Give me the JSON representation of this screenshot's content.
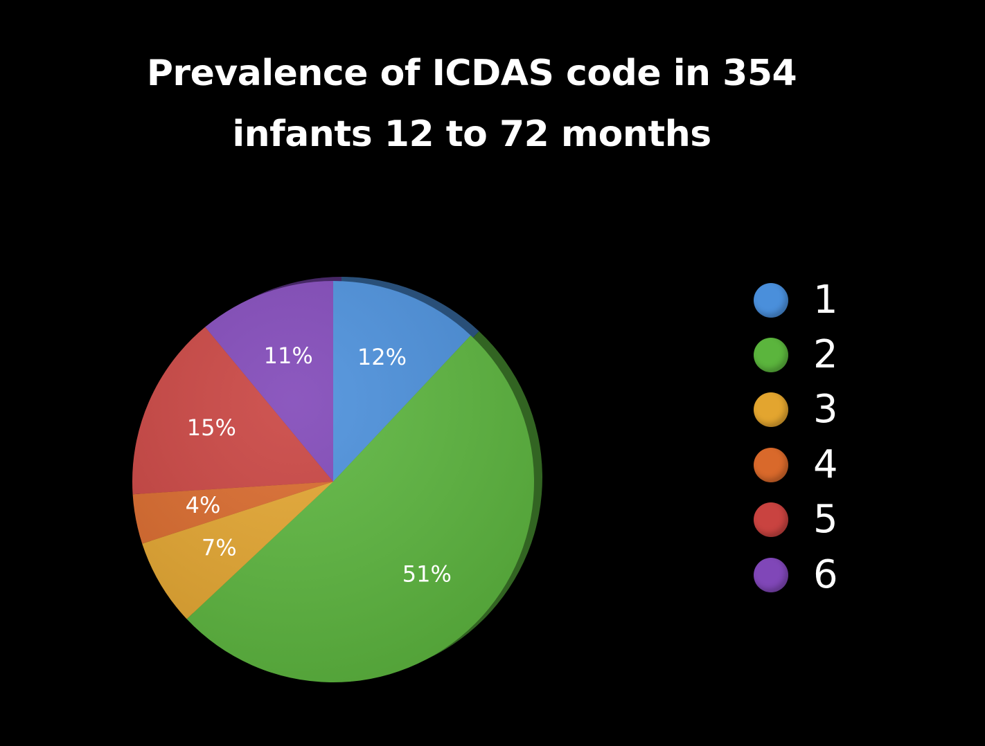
{
  "chart_data": {
    "type": "pie",
    "title_lines": [
      "Prevalence of ICDAS code in 354",
      "infants 12 to 72 months"
    ],
    "slices": [
      {
        "name": "1",
        "value": 12,
        "label": "12%",
        "color": "#4A8FDB"
      },
      {
        "name": "2",
        "value": 51,
        "label": "51%",
        "color": "#5BB53D"
      },
      {
        "name": "3",
        "value": 7,
        "label": "7%",
        "color": "#E3A52F"
      },
      {
        "name": "4",
        "value": 4,
        "label": "4%",
        "color": "#D9692B"
      },
      {
        "name": "5",
        "value": 15,
        "label": "15%",
        "color": "#C94340"
      },
      {
        "name": "6",
        "value": 11,
        "label": "11%",
        "color": "#8047B8"
      }
    ],
    "legend_position": "right",
    "start": "12 o'clock, clockwise"
  }
}
